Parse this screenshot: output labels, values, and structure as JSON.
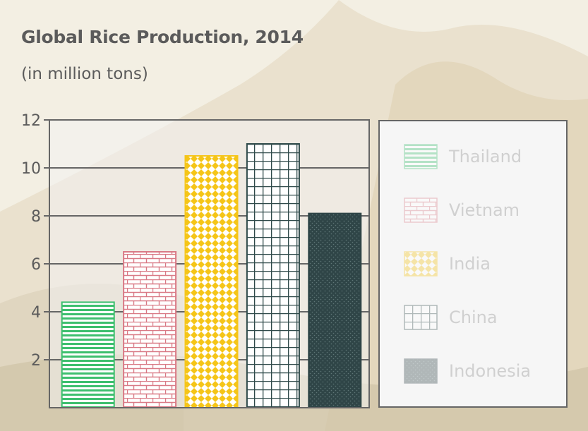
{
  "title": "Global Rice Production, 2014",
  "subtitle": "(in million tons)",
  "chart_data": {
    "type": "bar",
    "title": "Global Rice Production, 2014",
    "subtitle": "(in million tons)",
    "categories": [
      "Thailand",
      "Vietnam",
      "India",
      "China",
      "Indonesia"
    ],
    "values": [
      4.4,
      6.5,
      10.5,
      11.0,
      8.1
    ],
    "ylim": [
      0,
      12
    ],
    "yticks": [
      2,
      4,
      6,
      8,
      10,
      12
    ],
    "grid": true,
    "legend_position": "right",
    "colors": {
      "Thailand": "#3dbf6e",
      "Vietnam": "#d97a86",
      "India": "#f5c518",
      "China": "#2f4a4a",
      "Indonesia": "#2f4547"
    }
  }
}
